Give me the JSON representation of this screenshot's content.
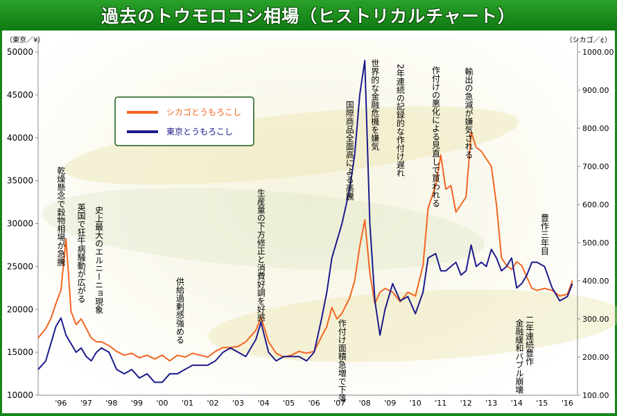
{
  "chart_data": {
    "type": "line",
    "title": "過去のトウモロコシ相場（ヒストリカルチャート）",
    "ylabel_left": "（東京／¥）",
    "ylabel_right": "（シカゴ／¢）",
    "y_left_lim": [
      10000,
      50000
    ],
    "y_left_ticks": [
      10000,
      15000,
      20000,
      25000,
      30000,
      35000,
      40000,
      45000,
      50000
    ],
    "y_left_tick_labels": [
      "10000",
      "15000",
      "20000",
      "25000",
      "30000",
      "35000",
      "40000",
      "45000",
      "50000"
    ],
    "y_right_lim": [
      100,
      1000
    ],
    "y_right_ticks": [
      100,
      200,
      300,
      400,
      500,
      600,
      700,
      800,
      900,
      1000
    ],
    "y_right_tick_labels": [
      "100.00",
      "200.00",
      "300.00",
      "400.00",
      "500.00",
      "600.00",
      "700.00",
      "800.00",
      "900.00",
      "1000.00"
    ],
    "x_lim": [
      1995.6,
      2016.9
    ],
    "x_ticks": [
      1996.5,
      1997.5,
      1998.5,
      1999.5,
      2000.5,
      2001.5,
      2002.5,
      2003.5,
      2004.5,
      2005.5,
      2006.5,
      2007.5,
      2008.5,
      2009.5,
      2010.5,
      2011.5,
      2012.5,
      2013.5,
      2014.5,
      2015.5,
      2016.5
    ],
    "x_tick_labels": [
      "'96",
      "'97",
      "'98",
      "'99",
      "'00",
      "'01",
      "'02",
      "'03",
      "'04",
      "'05",
      "'06",
      "'07",
      "'08",
      "'09",
      "'10",
      "'11",
      "'12",
      "'13",
      "'14",
      "'15",
      "'16"
    ],
    "legend": [
      {
        "name": "シカゴとうもろこし",
        "color": "#f26522"
      },
      {
        "name": "東京とうもろこし",
        "color": "#1a1a8c"
      }
    ],
    "series": [
      {
        "name": "シカゴとうもろこし",
        "axis": "right",
        "color": "#f26522",
        "x": [
          1995.6,
          1995.9,
          1996.1,
          1996.3,
          1996.5,
          1996.7,
          1996.9,
          1997.1,
          1997.3,
          1997.5,
          1997.7,
          1997.9,
          1998.1,
          1998.4,
          1998.7,
          1999.0,
          1999.3,
          1999.6,
          1999.9,
          2000.2,
          2000.5,
          2000.8,
          2001.1,
          2001.4,
          2001.7,
          2002.0,
          2002.3,
          2002.6,
          2002.9,
          2003.2,
          2003.5,
          2003.8,
          2004.0,
          2004.2,
          2004.4,
          2004.7,
          2005.0,
          2005.3,
          2005.6,
          2005.9,
          2006.2,
          2006.5,
          2006.8,
          2007.0,
          2007.2,
          2007.4,
          2007.6,
          2007.9,
          2008.1,
          2008.3,
          2008.5,
          2008.7,
          2008.9,
          2009.1,
          2009.3,
          2009.6,
          2009.9,
          2010.2,
          2010.5,
          2010.8,
          2011.0,
          2011.3,
          2011.5,
          2011.7,
          2011.9,
          2012.1,
          2012.3,
          2012.5,
          2012.7,
          2012.9,
          2013.1,
          2013.3,
          2013.5,
          2013.7,
          2013.9,
          2014.1,
          2014.3,
          2014.5,
          2014.7,
          2014.9,
          2015.1,
          2015.3,
          2015.6,
          2015.9,
          2016.2,
          2016.5,
          2016.7
        ],
        "values": [
          250,
          275,
          300,
          340,
          375,
          510,
          320,
          285,
          300,
          275,
          250,
          240,
          240,
          230,
          215,
          205,
          210,
          198,
          205,
          195,
          205,
          190,
          205,
          200,
          210,
          205,
          200,
          215,
          225,
          225,
          228,
          240,
          255,
          270,
          305,
          240,
          210,
          200,
          205,
          215,
          210,
          215,
          255,
          280,
          330,
          300,
          315,
          355,
          400,
          490,
          560,
          420,
          340,
          370,
          380,
          370,
          345,
          370,
          360,
          440,
          590,
          650,
          730,
          640,
          650,
          580,
          600,
          620,
          790,
          750,
          740,
          720,
          700,
          600,
          460,
          440,
          430,
          450,
          440,
          410,
          380,
          375,
          380,
          375,
          360,
          365,
          400
        ]
      },
      {
        "name": "東京とうもろこし",
        "axis": "left",
        "color": "#1a1a8c",
        "x": [
          1995.6,
          1995.9,
          1996.1,
          1996.3,
          1996.5,
          1996.7,
          1996.9,
          1997.1,
          1997.3,
          1997.5,
          1997.7,
          1997.9,
          1998.1,
          1998.4,
          1998.7,
          1999.0,
          1999.3,
          1999.6,
          1999.9,
          2000.2,
          2000.5,
          2000.8,
          2001.1,
          2001.4,
          2001.7,
          2002.0,
          2002.3,
          2002.6,
          2002.9,
          2003.2,
          2003.5,
          2003.8,
          2004.0,
          2004.2,
          2004.4,
          2004.7,
          2005.0,
          2005.3,
          2005.6,
          2005.9,
          2006.2,
          2006.5,
          2006.8,
          2007.0,
          2007.2,
          2007.4,
          2007.6,
          2007.9,
          2008.1,
          2008.3,
          2008.5,
          2008.7,
          2008.9,
          2009.1,
          2009.3,
          2009.6,
          2009.9,
          2010.2,
          2010.5,
          2010.8,
          2011.0,
          2011.3,
          2011.5,
          2011.7,
          2011.9,
          2012.1,
          2012.3,
          2012.5,
          2012.7,
          2012.9,
          2013.1,
          2013.3,
          2013.5,
          2013.7,
          2013.9,
          2014.1,
          2014.3,
          2014.5,
          2014.7,
          2014.9,
          2015.1,
          2015.3,
          2015.6,
          2015.9,
          2016.2,
          2016.5,
          2016.7
        ],
        "values": [
          13000,
          14000,
          16000,
          18000,
          19000,
          17000,
          16000,
          15000,
          15500,
          14500,
          14000,
          15000,
          15500,
          15000,
          13000,
          12500,
          13000,
          12000,
          12500,
          11500,
          11500,
          12500,
          12500,
          13000,
          13500,
          13500,
          13500,
          14000,
          15000,
          15500,
          15000,
          14500,
          15500,
          16500,
          18500,
          15000,
          14000,
          14500,
          14500,
          14500,
          14000,
          15000,
          19000,
          22000,
          26000,
          28000,
          30000,
          34000,
          38000,
          45000,
          49000,
          30000,
          21000,
          17000,
          20000,
          23000,
          21000,
          21500,
          19500,
          22000,
          26000,
          26500,
          24500,
          24500,
          25000,
          25500,
          24000,
          24500,
          27500,
          25000,
          25500,
          25000,
          27000,
          26000,
          24500,
          25000,
          26000,
          22500,
          23000,
          24000,
          25500,
          25500,
          25000,
          22500,
          21000,
          21500,
          23000
        ]
      }
    ],
    "annotations": [
      {
        "text": "乾燥懸念で穀物相場が急騰",
        "x": 1996.5
      },
      {
        "text": "英国で狂牛病騒動が広がる",
        "x": 1997.3
      },
      {
        "text": "史上最大のエルニーニョ現象",
        "x": 1998.0
      },
      {
        "text": "供給過剰感強める",
        "x": 2001.2
      },
      {
        "text": "生産量の下方修正と消費好調を好感",
        "x": 2004.4
      },
      {
        "text": "国際商品全面高による高騰",
        "x": 2007.9
      },
      {
        "text": "作付け面積急増で下落",
        "x": 2007.6
      },
      {
        "text": "世界的な金融危機を嫌気",
        "x": 2008.9
      },
      {
        "text": "2年連続の記録的な作付け遅れ",
        "x": 2009.9
      },
      {
        "text": "作付けの悪化による見直しで買われる",
        "x": 2011.3
      },
      {
        "text": "輸出の急減が嫌気される",
        "x": 2012.6
      },
      {
        "text": "豊作三年目",
        "x": 2015.6
      },
      {
        "text": "二年連続豊作",
        "x": 2015.0
      },
      {
        "text": "金融緩和バブル崩壊",
        "x": 2014.6
      }
    ]
  }
}
